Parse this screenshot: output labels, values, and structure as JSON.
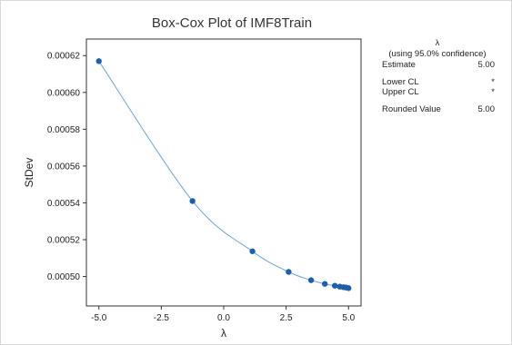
{
  "chart_data": {
    "type": "scatter",
    "title": "Box-Cox Plot of IMF8Train",
    "xlabel": "λ",
    "ylabel": "StDev",
    "xlim": [
      -5.5,
      5.5
    ],
    "ylim": [
      0.000484,
      0.000629
    ],
    "x_ticks": [
      "-5.0",
      "-2.5",
      "0.0",
      "2.5",
      "5.0"
    ],
    "x_tick_values": [
      -5.0,
      -2.5,
      0.0,
      2.5,
      5.0
    ],
    "y_ticks": [
      "0.00050",
      "0.00052",
      "0.00054",
      "0.00056",
      "0.00058",
      "0.00060",
      "0.00062"
    ],
    "y_tick_values": [
      0.0005,
      0.00052,
      0.00054,
      0.00056,
      0.00058,
      0.0006,
      0.00062
    ],
    "grid": false,
    "series": [
      {
        "x": [
          -5.0,
          -1.25,
          1.15,
          2.6,
          3.5,
          4.05,
          4.45,
          4.65,
          4.8,
          4.9,
          5.0
        ],
        "y": [
          0.000617,
          0.000541,
          0.0005137,
          0.0005025,
          0.000498,
          0.000496,
          0.000495,
          0.0004945,
          0.0004942,
          0.000494,
          0.0004937
        ],
        "color": "#1f5ea8",
        "line_color": "#6fa3d8"
      }
    ]
  },
  "legend": {
    "header": "λ",
    "subheader": "(using 95.0% confidence)",
    "rows": [
      {
        "label": "Estimate",
        "value": "5.00"
      },
      {
        "label": "Lower CL",
        "value": "*"
      },
      {
        "label": "Upper CL",
        "value": "*"
      },
      {
        "label": "Rounded Value",
        "value": "5.00"
      }
    ]
  }
}
